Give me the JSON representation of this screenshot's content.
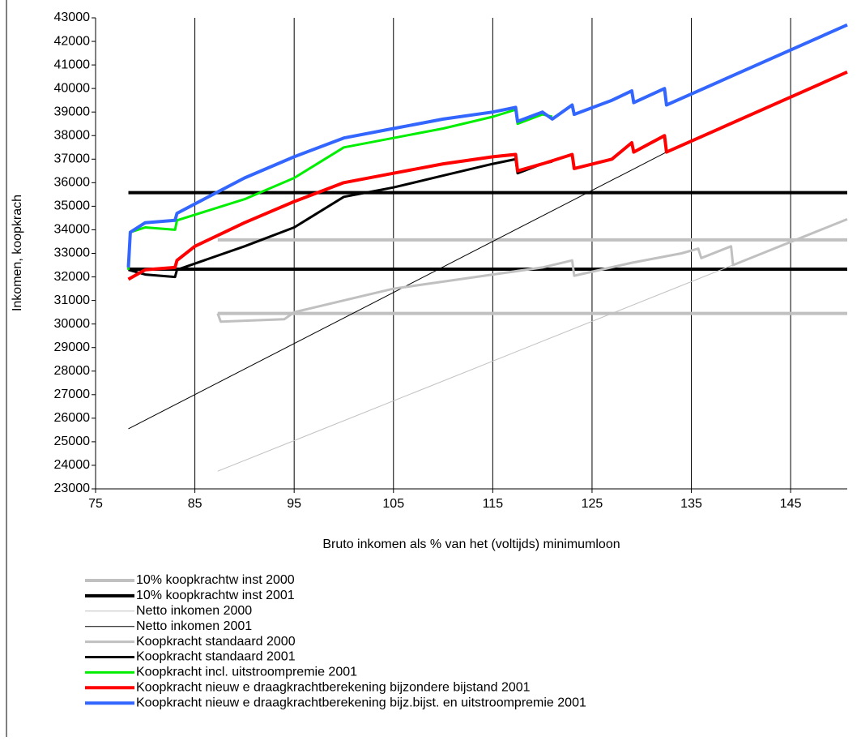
{
  "chart_data": {
    "type": "line",
    "xlabel": "Bruto inkomen als % van het (voltijds) minimumloon",
    "ylabel": "Inkomen, koopkrach",
    "xlim": [
      75,
      150.7
    ],
    "ylim": [
      23000,
      43000
    ],
    "xticks": [
      75,
      85,
      95,
      105,
      115,
      125,
      135,
      145
    ],
    "yticks": [
      23000,
      24000,
      25000,
      26000,
      27000,
      28000,
      29000,
      30000,
      31000,
      32000,
      33000,
      34000,
      35000,
      36000,
      37000,
      38000,
      39000,
      40000,
      41000,
      42000,
      43000
    ],
    "grid": "x",
    "legend": "bottom",
    "series": [
      {
        "name": "10% koopkrachtw inst 2000",
        "color": "#c0c0c0",
        "width": 4,
        "x": [
          87.3,
          150.7,
          null,
          87.3,
          150.7
        ],
        "values": [
          30450,
          30450,
          null,
          33570,
          33570
        ]
      },
      {
        "name": "10% koopkrachtw inst 2001",
        "color": "#000000",
        "width": 4,
        "x": [
          78.3,
          150.7,
          null,
          78.3,
          150.7
        ],
        "values": [
          35580,
          35580,
          null,
          32330,
          32330
        ]
      },
      {
        "name": "Netto inkomen 2000",
        "color": "#c0c0c0",
        "width": 1,
        "x": [
          87.3,
          150.7
        ],
        "values": [
          23750,
          34450
        ]
      },
      {
        "name": "Netto inkomen 2001",
        "color": "#000000",
        "width": 1,
        "x": [
          78.3,
          132.5
        ],
        "values": [
          25550,
          37300
        ]
      },
      {
        "name": "Koopkracht standaard 2000",
        "color": "#c0c0c0",
        "width": 3,
        "x": [
          87.3,
          87.6,
          94,
          95,
          100,
          105,
          110,
          115,
          120,
          123,
          123.2,
          129,
          134,
          135.7,
          136,
          139,
          139.2,
          150.7
        ],
        "values": [
          30450,
          30100,
          30200,
          30500,
          31000,
          31500,
          31800,
          32100,
          32400,
          32700,
          32050,
          32600,
          33000,
          33200,
          32800,
          33300,
          32500,
          34450
        ]
      },
      {
        "name": "Koopkracht standaard 2001",
        "color": "#000000",
        "width": 3,
        "x": [
          78.3,
          80,
          83,
          83.2,
          90,
          95,
          100,
          105,
          110,
          115,
          117.3,
          117.5,
          120,
          121
        ],
        "values": [
          32300,
          32100,
          32000,
          32300,
          33300,
          34100,
          35400,
          35800,
          36300,
          36800,
          37000,
          36400,
          36800,
          36900
        ]
      },
      {
        "name": "Koopkracht incl. uitstroompremie 2001",
        "color": "#00ee00",
        "width": 3,
        "x": [
          78.3,
          78.5,
          80,
          83,
          83.2,
          90,
          95,
          100,
          105,
          110,
          115,
          117.3,
          117.5,
          120,
          121
        ],
        "values": [
          32300,
          33900,
          34100,
          34000,
          34400,
          35300,
          36200,
          37500,
          37900,
          38300,
          38800,
          39100,
          38500,
          38900,
          38800
        ]
      },
      {
        "name": "Koopkracht nieuw e draagkrachtberekening bijzondere bijstand 2001",
        "color": "#ff0000",
        "width": 4,
        "x": [
          78.3,
          80,
          83,
          83.2,
          85,
          90,
          95,
          100,
          105,
          110,
          115,
          117.3,
          117.5,
          120,
          123,
          123.2,
          127,
          129,
          129.2,
          132.3,
          132.5,
          150.7
        ],
        "values": [
          31900,
          32300,
          32400,
          32700,
          33300,
          34300,
          35200,
          36000,
          36400,
          36800,
          37100,
          37200,
          36500,
          36800,
          37200,
          36600,
          37000,
          37700,
          37300,
          38000,
          37300,
          40700
        ]
      },
      {
        "name": "Koopkracht nieuw e draagkrachtberekening bijz.bijst. en uitstroompremie 2001",
        "color": "#3366ff",
        "width": 4,
        "x": [
          78.3,
          78.5,
          80,
          83,
          83.2,
          90,
          95,
          100,
          105,
          110,
          115,
          117.3,
          117.5,
          120,
          121,
          123,
          123.2,
          127,
          129,
          129.2,
          132.3,
          132.5,
          150.7
        ],
        "values": [
          32400,
          33900,
          34300,
          34400,
          34700,
          36200,
          37100,
          37900,
          38300,
          38700,
          39000,
          39200,
          38600,
          39000,
          38700,
          39300,
          38900,
          39500,
          39900,
          39400,
          40000,
          39300,
          42700
        ]
      }
    ]
  }
}
